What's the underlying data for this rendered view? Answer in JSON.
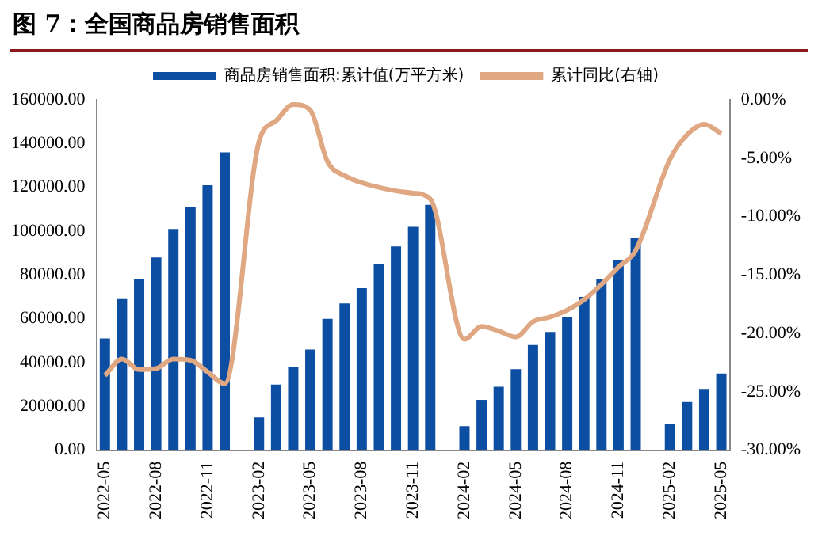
{
  "chart_data": {
    "type": "bar",
    "title": "图 7：全国商品房销售面积",
    "categories": [
      "2022-05",
      null,
      null,
      "2022-08",
      null,
      null,
      "2022-11",
      null,
      null,
      "2023-02",
      null,
      null,
      "2023-05",
      null,
      null,
      "2023-08",
      null,
      null,
      "2023-11",
      null,
      null,
      "2024-02",
      null,
      null,
      "2024-05",
      null,
      null,
      "2024-08",
      null,
      null,
      "2024-11",
      null,
      null,
      "2025-02",
      null,
      null,
      "2025-05"
    ],
    "series": [
      {
        "name": "商品房销售面积:累计值(万平方米)",
        "color": "#0b4ea2",
        "values": [
          51000,
          69000,
          78000,
          88000,
          101000,
          111000,
          121000,
          136000,
          null,
          15000,
          30000,
          38000,
          46000,
          60000,
          67000,
          74000,
          85000,
          93000,
          102000,
          112000,
          null,
          11000,
          23000,
          29000,
          37000,
          48000,
          54000,
          61000,
          70000,
          78000,
          87000,
          97000,
          null,
          12000,
          22000,
          28000,
          35000
        ]
      },
      {
        "name": "累计同比(右轴)",
        "type": "line",
        "axis": "y2",
        "color": "#e0a882",
        "values": [
          -23.6,
          -22.2,
          -23.1,
          -23.0,
          -22.2,
          -22.3,
          -23.3,
          -24.3,
          null,
          -3.6,
          -1.8,
          -0.4,
          -0.9,
          -5.3,
          -6.5,
          -7.1,
          -7.5,
          -7.8,
          -8.0,
          -8.5,
          null,
          -20.5,
          -19.4,
          -19.8,
          -20.3,
          -19.0,
          -18.6,
          -18.0,
          -17.1,
          -15.8,
          -14.3,
          -12.9,
          null,
          -5.1,
          -3.0,
          -2.1,
          -2.9
        ]
      }
    ],
    "ylim": [
      0,
      160000
    ],
    "yticks": [
      {
        "value": 0,
        "label": "0.00"
      },
      {
        "value": 20000,
        "label": "20000.00"
      },
      {
        "value": 40000,
        "label": "40000.00"
      },
      {
        "value": 60000,
        "label": "60000.00"
      },
      {
        "value": 80000,
        "label": "80000.00"
      },
      {
        "value": 100000,
        "label": "100000.00"
      },
      {
        "value": 120000,
        "label": "120000.00"
      },
      {
        "value": 140000,
        "label": "140000.00"
      },
      {
        "value": 160000,
        "label": "160000.00"
      }
    ],
    "y2lim": [
      -30,
      0
    ],
    "y2ticks": [
      {
        "value": -30,
        "label": "-30.00%"
      },
      {
        "value": -25,
        "label": "-25.00%"
      },
      {
        "value": -20,
        "label": "-20.00%"
      },
      {
        "value": -15,
        "label": "-15.00%"
      },
      {
        "value": -10,
        "label": "-10.00%"
      },
      {
        "value": -5,
        "label": "-5.00%"
      },
      {
        "value": 0,
        "label": "0.00%"
      }
    ],
    "legend": "top",
    "grid": false,
    "marker": "none"
  }
}
